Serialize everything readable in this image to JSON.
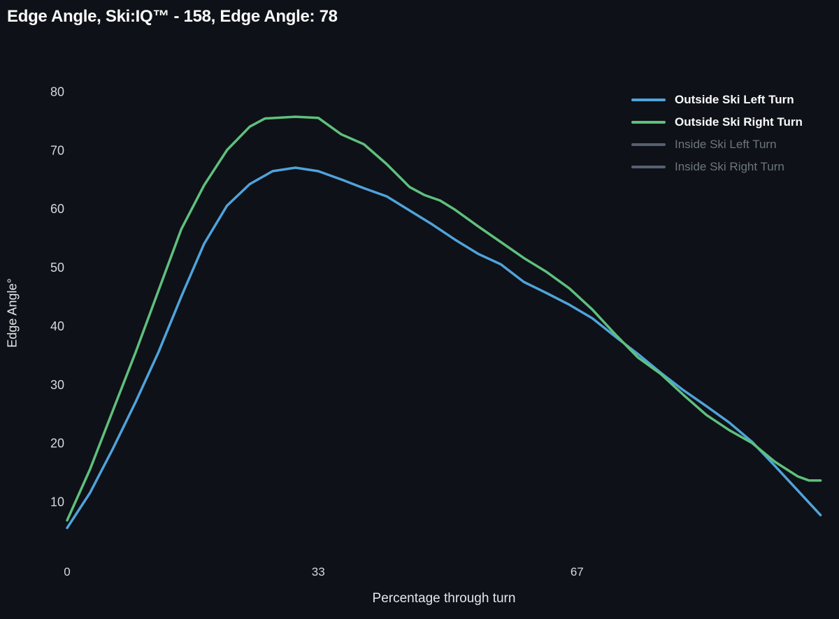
{
  "title": "Edge Angle, Ski:IQ™ - 158, Edge Angle: 78",
  "colors": {
    "background": "#0e1117",
    "title_text": "#fafafa",
    "tick_text": "#d5d8dd",
    "axis_title_text": "#e4e6ea",
    "outside_left_blue": "#4fa3db",
    "outside_right_green": "#5fc07d",
    "disabled_swatch": "#566070",
    "disabled_text": "#6d7681"
  },
  "chart_data": {
    "type": "line",
    "title": "Edge Angle, Ski:IQ™ - 158, Edge Angle: 78",
    "xlabel": "Percentage through turn",
    "ylabel": "Edge Angle°",
    "xlim": [
      0,
      100
    ],
    "ylim": [
      2,
      83
    ],
    "x_ticks": [
      0,
      33,
      67
    ],
    "y_ticks": [
      10,
      20,
      30,
      40,
      50,
      60,
      70,
      80
    ],
    "grid": false,
    "legend_position": "top-right",
    "series": [
      {
        "name": "Outside Ski Left Turn",
        "color": "#4fa3db",
        "visible": true,
        "points": [
          [
            0,
            5.5
          ],
          [
            3,
            11.5
          ],
          [
            6,
            19
          ],
          [
            9,
            27
          ],
          [
            12,
            35.5
          ],
          [
            15,
            45
          ],
          [
            18,
            54
          ],
          [
            21,
            60.5
          ],
          [
            24,
            64.2
          ],
          [
            27,
            66.4
          ],
          [
            30,
            67
          ],
          [
            33,
            66.4
          ],
          [
            36,
            65
          ],
          [
            39,
            63.5
          ],
          [
            42,
            62.1
          ],
          [
            45,
            59.7
          ],
          [
            48,
            57.3
          ],
          [
            51,
            54.7
          ],
          [
            54,
            52.3
          ],
          [
            57,
            50.5
          ],
          [
            60,
            47.5
          ],
          [
            63,
            45.6
          ],
          [
            66,
            43.6
          ],
          [
            69,
            41.3
          ],
          [
            72,
            38.2
          ],
          [
            75,
            35.2
          ],
          [
            78,
            32
          ],
          [
            81,
            29
          ],
          [
            84,
            26.3
          ],
          [
            87,
            23.5
          ],
          [
            90,
            20.2
          ],
          [
            93,
            16.1
          ],
          [
            96,
            11.9
          ],
          [
            99,
            7.7
          ]
        ]
      },
      {
        "name": "Outside Ski Right Turn",
        "color": "#5fc07d",
        "visible": true,
        "points": [
          [
            0,
            6.8
          ],
          [
            3,
            15.5
          ],
          [
            6,
            25.5
          ],
          [
            9,
            35.5
          ],
          [
            12,
            46
          ],
          [
            15,
            56.5
          ],
          [
            18,
            64
          ],
          [
            21,
            70
          ],
          [
            24,
            74
          ],
          [
            26,
            75.4
          ],
          [
            30,
            75.7
          ],
          [
            33,
            75.5
          ],
          [
            36,
            72.7
          ],
          [
            39,
            71
          ],
          [
            42,
            67.6
          ],
          [
            45,
            63.7
          ],
          [
            47,
            62.3
          ],
          [
            49,
            61.4
          ],
          [
            51,
            59.8
          ],
          [
            54,
            57
          ],
          [
            57,
            54.3
          ],
          [
            60,
            51.6
          ],
          [
            63,
            49.2
          ],
          [
            66,
            46.4
          ],
          [
            69,
            42.8
          ],
          [
            72,
            38.6
          ],
          [
            75,
            34.6
          ],
          [
            78,
            31.8
          ],
          [
            81,
            28.2
          ],
          [
            84,
            24.8
          ],
          [
            87,
            22.2
          ],
          [
            90,
            20
          ],
          [
            93,
            16.8
          ],
          [
            96,
            14.3
          ],
          [
            97.5,
            13.6
          ],
          [
            99,
            13.6
          ]
        ]
      },
      {
        "name": "Inside Ski Left Turn",
        "color": "#566070",
        "visible": false,
        "points": []
      },
      {
        "name": "Inside Ski Right Turn",
        "color": "#566070",
        "visible": false,
        "points": []
      }
    ]
  }
}
